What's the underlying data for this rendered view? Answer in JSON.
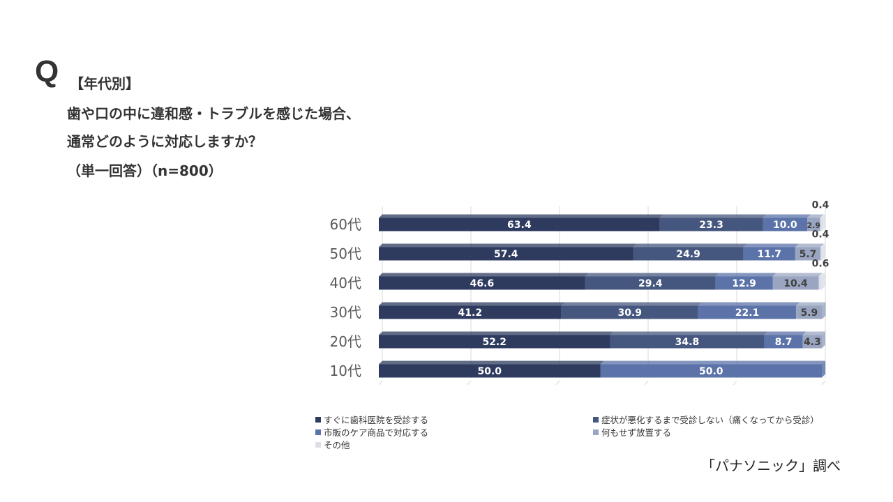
{
  "question": {
    "mark": "Q",
    "tag": "【年代別】",
    "line1": "歯や口の中に違和感・トラブルを感じた場合、",
    "line2": "通常どのように対応しますか？",
    "line3": "（単一回答）（n=800）"
  },
  "chart_data": {
    "type": "bar",
    "orientation": "horizontal",
    "stacked": true,
    "categories": [
      "60代",
      "50代",
      "40代",
      "30代",
      "20代",
      "10代"
    ],
    "xlim": [
      0,
      100
    ],
    "grid": true,
    "legend_position": "bottom",
    "series": [
      {
        "name": "すぐに歯科医院を受診する",
        "color": "#2e3b5f",
        "values": [
          63.4,
          57.4,
          46.6,
          41.2,
          52.2,
          50.0
        ]
      },
      {
        "name": "症状が悪化するまで受診しない（痛くなってから受診）",
        "color": "#46577f",
        "values": [
          23.3,
          24.9,
          29.4,
          30.9,
          34.8,
          0
        ]
      },
      {
        "name": "市販のケア商品で対応する",
        "color": "#5b73a8",
        "values": [
          10.0,
          11.7,
          12.9,
          22.1,
          8.7,
          50.0
        ]
      },
      {
        "name": "何もせず放置する",
        "color": "#9aa6c1",
        "values": [
          2.9,
          5.7,
          10.4,
          5.9,
          4.3,
          0
        ]
      },
      {
        "name": "その他",
        "color": "#dcdfe8",
        "values": [
          0.4,
          0.4,
          0.6,
          0,
          0,
          0
        ]
      }
    ],
    "labels": [
      [
        "63.4",
        "23.3",
        "10.0",
        "2.9",
        "0.4"
      ],
      [
        "57.4",
        "24.9",
        "11.7",
        "5.7",
        "0.4"
      ],
      [
        "46.6",
        "29.4",
        "12.9",
        "10.4",
        "0.6"
      ],
      [
        "41.2",
        "30.9",
        "22.1",
        "5.9",
        ""
      ],
      [
        "52.2",
        "34.8",
        "8.7",
        "4.3",
        ""
      ],
      [
        "50.0",
        "",
        "50.0",
        "",
        ""
      ]
    ]
  },
  "credit": "「パナソニック」調べ"
}
